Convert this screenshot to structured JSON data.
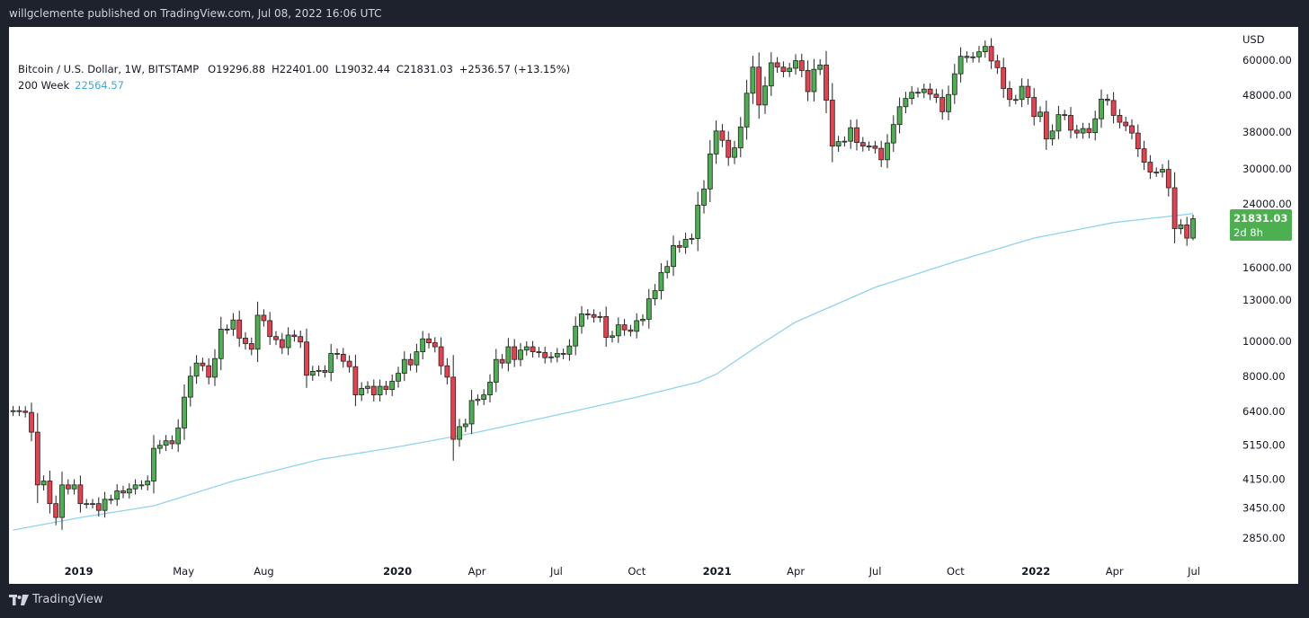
{
  "publisher_line": "willgclemente published on TradingView.com, Jul 08, 2022 16:06 UTC",
  "legend": {
    "symbol": "Bitcoin / U.S. Dollar, 1W, BITSTAMP",
    "open": "O19296.88",
    "high": "H22401.00",
    "low": "L19032.44",
    "close": "C21831.03",
    "change": "+2536.57 (+13.15%)",
    "ma_label": "200 Week",
    "ma_value": "22564.57"
  },
  "price_label": {
    "value": "21831.03",
    "countdown": "2d 8h"
  },
  "footer": {
    "brand": "TradingView",
    "logo_icon": "tradingview-logo-icon"
  },
  "colors": {
    "up": "#4caf50",
    "down": "#e8404f",
    "ma": "#8fd3f0",
    "price_label": "#4caf50"
  },
  "chart_data": {
    "type": "candlestick",
    "scale": "log",
    "currency_label": "USD",
    "interval": "1W",
    "ylim": [
      2600,
      72000
    ],
    "grid": false,
    "y_ticks": [
      "60000.00",
      "48000.00",
      "38000.00",
      "30000.00",
      "24000.00",
      "16000.00",
      "13000.00",
      "10000.00",
      "8000.00",
      "6400.00",
      "5150.00",
      "4150.00",
      "3450.00",
      "2850.00"
    ],
    "x_ticks": [
      {
        "label": "2019",
        "date": "2019-01-01"
      },
      {
        "label": "May",
        "date": "2019-05-01"
      },
      {
        "label": "Aug",
        "date": "2019-08-01"
      },
      {
        "label": "2020",
        "date": "2020-01-01"
      },
      {
        "label": "Apr",
        "date": "2020-04-01"
      },
      {
        "label": "Jul",
        "date": "2020-07-01"
      },
      {
        "label": "Oct",
        "date": "2020-10-01"
      },
      {
        "label": "2021",
        "date": "2021-01-01"
      },
      {
        "label": "Apr",
        "date": "2021-04-01"
      },
      {
        "label": "Jul",
        "date": "2021-07-01"
      },
      {
        "label": "Oct",
        "date": "2021-10-01"
      },
      {
        "label": "2022",
        "date": "2022-01-01"
      },
      {
        "label": "Apr",
        "date": "2022-04-01"
      },
      {
        "label": "Jul",
        "date": "2022-07-01"
      }
    ],
    "first_week": "2018-10-22",
    "first_open": 6400,
    "weekly_close": [
      6420,
      6400,
      6350,
      5600,
      4000,
      4100,
      3550,
      3250,
      4000,
      3900,
      4000,
      3550,
      3550,
      3550,
      3400,
      3650,
      3650,
      3850,
      3800,
      3900,
      4000,
      4000,
      4100,
      5050,
      5150,
      5300,
      5200,
      5750,
      7000,
      8000,
      8700,
      8550,
      7950,
      8950,
      10800,
      10800,
      11450,
      10200,
      9850,
      9500,
      11800,
      11400,
      10300,
      10100,
      9600,
      10400,
      10300,
      9950,
      8050,
      8250,
      8300,
      8200,
      9250,
      9200,
      8800,
      8500,
      7100,
      7400,
      7500,
      7100,
      7500,
      7350,
      7750,
      8150,
      8900,
      8600,
      9350,
      10150,
      9900,
      9650,
      8550,
      7950,
      5350,
      5800,
      5900,
      6850,
      6900,
      7100,
      7700,
      8900,
      8700,
      9650,
      8900,
      9450,
      9650,
      9350,
      9300,
      9000,
      9050,
      9250,
      9200,
      9700,
      11000,
      11900,
      11850,
      11650,
      11700,
      10250,
      10350,
      11100,
      10750,
      10650,
      11400,
      11500,
      13100,
      13800,
      15500,
      16100,
      18400,
      18200,
      19150,
      19250,
      23800,
      26400,
      33000,
      38200,
      36000,
      32300,
      34300,
      39200,
      48600,
      57400,
      45100,
      50900,
      59000,
      57400,
      55800,
      57000,
      59800,
      56200,
      49100,
      56600,
      58200,
      46500,
      34700,
      35700,
      35800,
      39000,
      35500,
      34700,
      34700,
      34200,
      31800,
      35400,
      39800,
      44600,
      47000,
      48900,
      48800,
      49900,
      48300,
      47300,
      43200,
      48200,
      55000,
      61500,
      61000,
      61300,
      63300,
      65500,
      59700,
      57200,
      50100,
      46700,
      46700,
      50800,
      47300,
      41900,
      43100,
      36300,
      38200,
      42400,
      42200,
      38400,
      37700,
      38800,
      37800,
      41300,
      46800,
      46400,
      42200,
      40400,
      39500,
      37700,
      34100,
      31300,
      29400,
      29400,
      29900,
      26600,
      20500,
      21000,
      19294.46,
      21831.03
    ],
    "last_candle": {
      "open": 19296.88,
      "high": 22401.0,
      "low": 19032.44,
      "close": 21831.03
    },
    "ma_200_week": [
      {
        "date": "2018-10-22",
        "value": 3000
      },
      {
        "date": "2019-01-07",
        "value": 3250
      },
      {
        "date": "2019-04-01",
        "value": 3500
      },
      {
        "date": "2019-07-01",
        "value": 4100
      },
      {
        "date": "2019-10-07",
        "value": 4700
      },
      {
        "date": "2020-01-06",
        "value": 5100
      },
      {
        "date": "2020-04-06",
        "value": 5600
      },
      {
        "date": "2020-07-06",
        "value": 6250
      },
      {
        "date": "2020-10-05",
        "value": 7000
      },
      {
        "date": "2020-12-14",
        "value": 7700
      },
      {
        "date": "2021-01-04",
        "value": 8100
      },
      {
        "date": "2021-02-15",
        "value": 9500
      },
      {
        "date": "2021-04-05",
        "value": 11300
      },
      {
        "date": "2021-07-05",
        "value": 14100
      },
      {
        "date": "2021-10-04",
        "value": 16600
      },
      {
        "date": "2022-01-03",
        "value": 19300
      },
      {
        "date": "2022-04-04",
        "value": 21300
      },
      {
        "date": "2022-07-04",
        "value": 22564.57
      }
    ]
  }
}
